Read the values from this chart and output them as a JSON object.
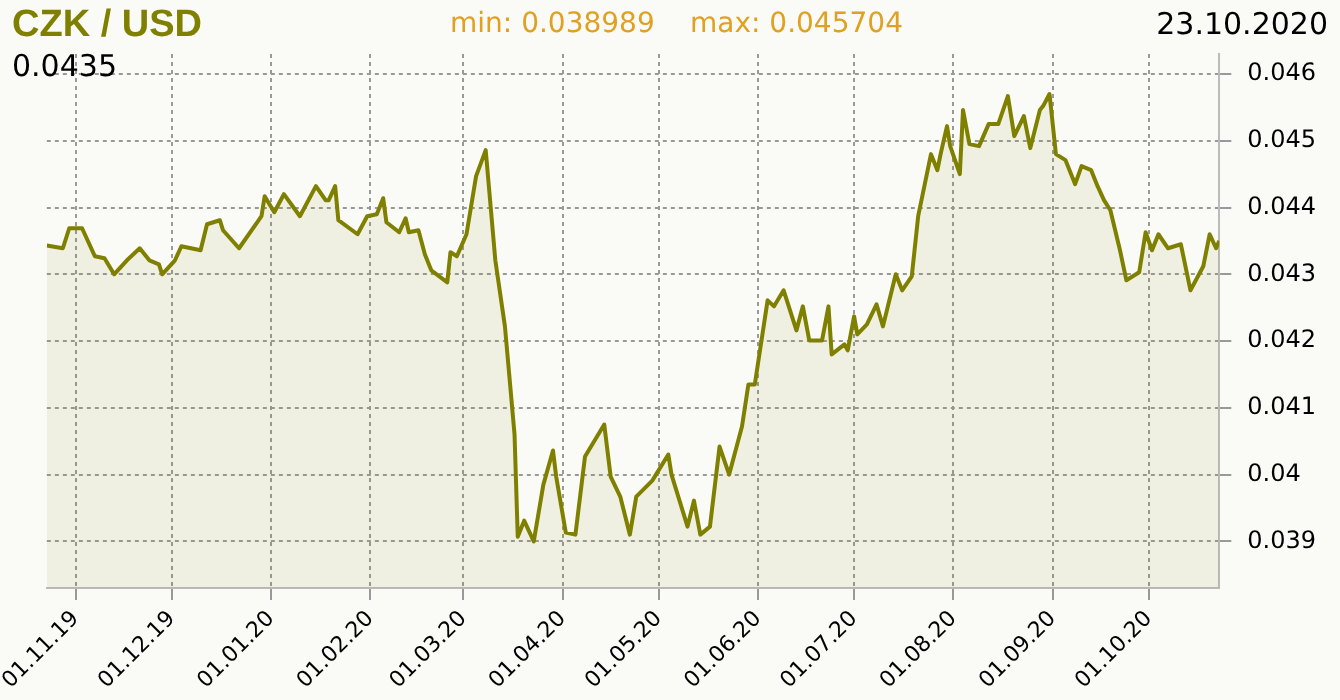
{
  "chart_data": {
    "type": "area",
    "title": "CZK / USD",
    "annotations": [
      "min: 0.038989",
      "max: 0.045704",
      "23.10.2020",
      "0.0435"
    ],
    "x": [
      "2019-10-23",
      "2019-10-28",
      "2019-10-30",
      "2019-11-03",
      "2019-11-07",
      "2019-11-10",
      "2019-11-13",
      "2019-11-17",
      "2019-11-21",
      "2019-11-24",
      "2019-11-27",
      "2019-11-28",
      "2019-12-02",
      "2019-12-04",
      "2019-12-10",
      "2019-12-12",
      "2019-12-16",
      "2019-12-17",
      "2019-12-22",
      "2019-12-29",
      "2019-12-30",
      "2020-01-02",
      "2020-01-05",
      "2020-01-10",
      "2020-01-15",
      "2020-01-18",
      "2020-01-19",
      "2020-01-21",
      "2020-01-22",
      "2020-01-28",
      "2020-01-31",
      "2020-02-03",
      "2020-02-05",
      "2020-02-06",
      "2020-02-10",
      "2020-02-12",
      "2020-02-13",
      "2020-02-16",
      "2020-02-18",
      "2020-02-20",
      "2020-02-25",
      "2020-02-26",
      "2020-02-28",
      "2020-03-02",
      "2020-03-05",
      "2020-03-08",
      "2020-03-11",
      "2020-03-14",
      "2020-03-17",
      "2020-03-18",
      "2020-03-20",
      "2020-03-23",
      "2020-03-26",
      "2020-03-29",
      "2020-03-30",
      "2020-04-02",
      "2020-04-05",
      "2020-04-08",
      "2020-04-14",
      "2020-04-16",
      "2020-04-19",
      "2020-04-22",
      "2020-04-24",
      "2020-04-29",
      "2020-05-04",
      "2020-05-05",
      "2020-05-10",
      "2020-05-12",
      "2020-05-14",
      "2020-05-17",
      "2020-05-20",
      "2020-05-23",
      "2020-05-27",
      "2020-05-29",
      "2020-05-31",
      "2020-06-04",
      "2020-06-06",
      "2020-06-09",
      "2020-06-13",
      "2020-06-15",
      "2020-06-17",
      "2020-06-21",
      "2020-06-23",
      "2020-06-24",
      "2020-06-28",
      "2020-06-29",
      "2020-07-01",
      "2020-07-02",
      "2020-07-05",
      "2020-07-08",
      "2020-07-10",
      "2020-07-14",
      "2020-07-16",
      "2020-07-19",
      "2020-07-21",
      "2020-07-25",
      "2020-07-27",
      "2020-07-28",
      "2020-07-30",
      "2020-07-31",
      "2020-08-03",
      "2020-08-04",
      "2020-08-06",
      "2020-08-09",
      "2020-08-12",
      "2020-08-15",
      "2020-08-18",
      "2020-08-20",
      "2020-08-23",
      "2020-08-25",
      "2020-08-28",
      "2020-08-29",
      "2020-08-31",
      "2020-09-02",
      "2020-09-05",
      "2020-09-08",
      "2020-09-10",
      "2020-09-13",
      "2020-09-15",
      "2020-09-17",
      "2020-09-19",
      "2020-09-22",
      "2020-09-24",
      "2020-09-28",
      "2020-09-30",
      "2020-10-02",
      "2020-10-04",
      "2020-10-07",
      "2020-10-11",
      "2020-10-14",
      "2020-10-17",
      "2020-10-18",
      "2020-10-20",
      "2020-10-22",
      "2020-10-23"
    ],
    "series": [
      {
        "color": "#808000",
        "values": [
          0.04343,
          0.04339,
          0.04369,
          0.04369,
          0.04327,
          0.04324,
          0.043,
          0.04321,
          0.04339,
          0.04321,
          0.04315,
          0.043,
          0.04321,
          0.04342,
          0.04336,
          0.04375,
          0.04381,
          0.04366,
          0.04339,
          0.04387,
          0.04417,
          0.04393,
          0.0442,
          0.04387,
          0.04432,
          0.04411,
          0.04411,
          0.04432,
          0.04381,
          0.0436,
          0.04387,
          0.0439,
          0.04414,
          0.04378,
          0.04363,
          0.04384,
          0.04363,
          0.04366,
          0.0433,
          0.04306,
          0.04288,
          0.04333,
          0.04327,
          0.0436,
          0.04447,
          0.04486,
          0.04321,
          0.04222,
          0.0406,
          0.03907,
          0.03931,
          0.039,
          0.03985,
          0.04036,
          0.03997,
          0.03913,
          0.0391,
          0.04027,
          0.04075,
          0.03997,
          0.03967,
          0.0391,
          0.03967,
          0.03991,
          0.0403,
          0.04,
          0.03922,
          0.03961,
          0.0391,
          0.03922,
          0.04042,
          0.04,
          0.04072,
          0.04135,
          0.04135,
          0.04261,
          0.04252,
          0.04276,
          0.04216,
          0.04252,
          0.04201,
          0.04201,
          0.04252,
          0.0418,
          0.04195,
          0.04186,
          0.04237,
          0.0421,
          0.04225,
          0.04255,
          0.04222,
          0.043,
          0.04276,
          0.04297,
          0.04387,
          0.0448,
          0.04456,
          0.0448,
          0.04522,
          0.04492,
          0.0445,
          0.04546,
          0.04495,
          0.04492,
          0.04525,
          0.04525,
          0.04567,
          0.04507,
          0.04537,
          0.04489,
          0.04546,
          0.04552,
          0.0457,
          0.0448,
          0.04471,
          0.04435,
          0.04462,
          0.04456,
          0.04432,
          0.04411,
          0.04396,
          0.04336,
          0.04291,
          0.04303,
          0.04363,
          0.04336,
          0.0436,
          0.04339,
          0.04345,
          0.04276,
          0.04303,
          0.04312,
          0.0436,
          0.04339,
          0.0435
        ]
      }
    ],
    "xlim": [
      "2019-10-23",
      "2020-10-23"
    ],
    "xticks": [
      {
        "value": "2019-11-01",
        "label": "01.11.19"
      },
      {
        "value": "2019-12-01",
        "label": "01.12.19"
      },
      {
        "value": "2020-01-01",
        "label": "01.01.20"
      },
      {
        "value": "2020-02-01",
        "label": "01.02.20"
      },
      {
        "value": "2020-03-01",
        "label": "01.03.20"
      },
      {
        "value": "2020-04-01",
        "label": "01.04.20"
      },
      {
        "value": "2020-05-01",
        "label": "01.05.20"
      },
      {
        "value": "2020-06-01",
        "label": "01.06.20"
      },
      {
        "value": "2020-07-01",
        "label": "01.07.20"
      },
      {
        "value": "2020-08-01",
        "label": "01.08.20"
      },
      {
        "value": "2020-09-01",
        "label": "01.09.20"
      },
      {
        "value": "2020-10-01",
        "label": "01.10.20"
      }
    ],
    "ylim": [
      0.0383,
      0.0463
    ],
    "yticks": [
      0.039,
      0.04,
      0.041,
      0.042,
      0.043,
      0.044,
      0.045,
      0.046
    ],
    "grid": true,
    "legend": false
  }
}
